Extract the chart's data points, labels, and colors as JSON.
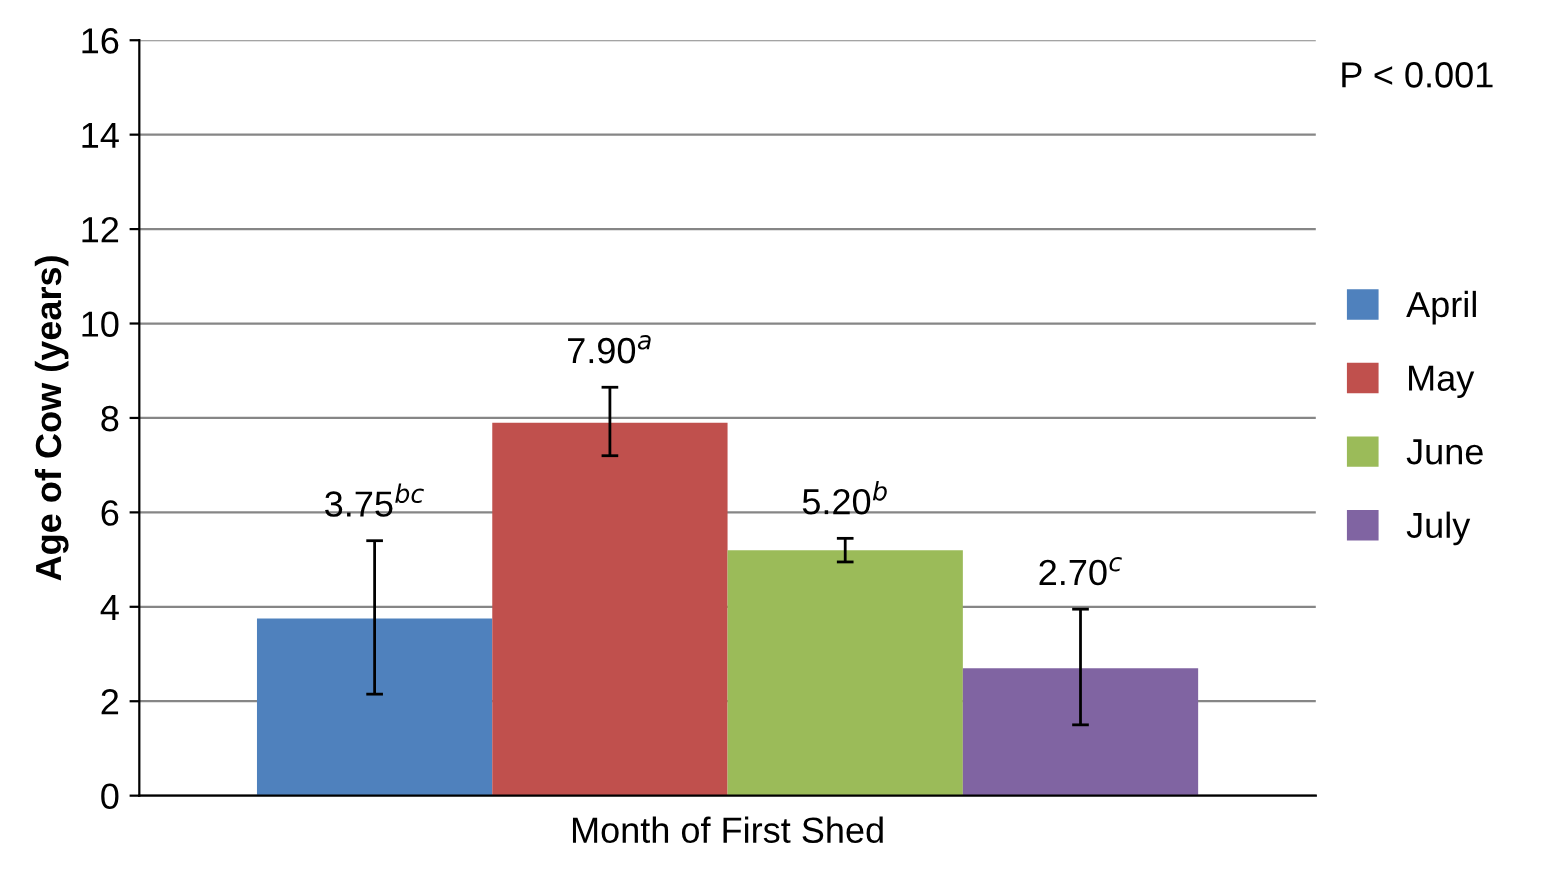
{
  "chart_data": {
    "type": "bar",
    "xlabel": "Month of First Shed",
    "ylabel": "Age of Cow (years)",
    "categories": [
      null
    ],
    "series": [
      {
        "name": "April",
        "color": "#4f81bd",
        "values": [
          3.75
        ],
        "errors": [
          [
            2.15,
            5.4
          ]
        ],
        "value_labels": [
          "3.75$^{bc}$"
        ]
      },
      {
        "name": "May",
        "color": "#c0504d",
        "values": [
          7.9
        ],
        "errors": [
          [
            7.2,
            8.65
          ]
        ],
        "value_labels": [
          "7.90$^{a}$"
        ]
      },
      {
        "name": "June",
        "color": "#9bbb59",
        "values": [
          5.2
        ],
        "errors": [
          [
            4.95,
            5.45
          ]
        ],
        "value_labels": [
          "5.20$^{b}$"
        ]
      },
      {
        "name": "July",
        "color": "#8064a2",
        "values": [
          2.7
        ],
        "errors": [
          [
            1.5,
            3.95
          ]
        ],
        "value_labels": [
          "2.70$^{c}$"
        ]
      }
    ],
    "ylim": [
      0,
      16
    ],
    "yticks": [
      0,
      2,
      4,
      6,
      8,
      10,
      12,
      14,
      16
    ],
    "grid": "y",
    "legend": "right",
    "annotations": [
      "P < 0.001"
    ]
  }
}
